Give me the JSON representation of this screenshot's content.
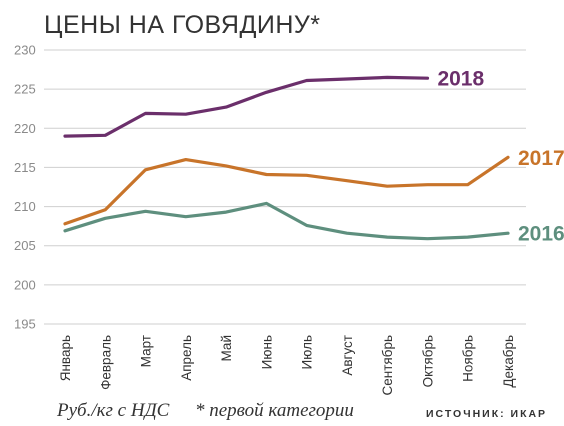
{
  "chart_data": {
    "type": "line",
    "title": "ЦЕНЫ НА ГОВЯДИНУ*",
    "categories": [
      "Январь",
      "Февраль",
      "Март",
      "Апрель",
      "Май",
      "Июнь",
      "Июль",
      "Август",
      "Сентябрь",
      "Октябрь",
      "Ноябрь",
      "Декабрь"
    ],
    "ylim": [
      195,
      230
    ],
    "yticks": [
      195,
      200,
      205,
      210,
      215,
      220,
      225,
      230
    ],
    "grid": true,
    "series": [
      {
        "name": "2018",
        "color": "#6b2f6b",
        "values": [
          219.0,
          219.1,
          221.9,
          221.8,
          222.7,
          224.6,
          226.1,
          226.3,
          226.5,
          226.4,
          null,
          null
        ]
      },
      {
        "name": "2017",
        "color": "#c8742a",
        "values": [
          207.8,
          209.6,
          214.7,
          216.0,
          215.2,
          214.1,
          214.0,
          213.3,
          212.6,
          212.8,
          212.8,
          216.3
        ]
      },
      {
        "name": "2016",
        "color": "#5e8f7e",
        "values": [
          206.9,
          208.5,
          209.4,
          208.7,
          209.3,
          210.4,
          207.6,
          206.6,
          206.1,
          205.9,
          206.1,
          206.6
        ]
      }
    ]
  },
  "footer": {
    "units": "Руб./кг с НДС",
    "note": "* первой категории",
    "source": "ИСТОЧНИК: ИКАР"
  }
}
